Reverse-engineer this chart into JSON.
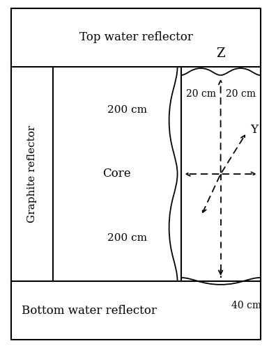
{
  "fig_width": 3.86,
  "fig_height": 5.0,
  "dpi": 100,
  "bg_color": "#ffffff",
  "top_water_label": "Top water reflector",
  "bottom_water_label": "Bottom water reflector",
  "graphite_label": "Graphite reflector",
  "core_label": "Core",
  "label_200_top": "200 cm",
  "label_200_bottom": "200 cm",
  "label_20_left": "20 cm",
  "label_20_right": "20 cm",
  "label_40": "40 cm",
  "label_Z": "Z",
  "label_Y": "Y",
  "line_color": "#000000",
  "dashed_color": "#000000",
  "fontsize_large": 12,
  "fontsize_medium": 11,
  "fontsize_small": 10
}
